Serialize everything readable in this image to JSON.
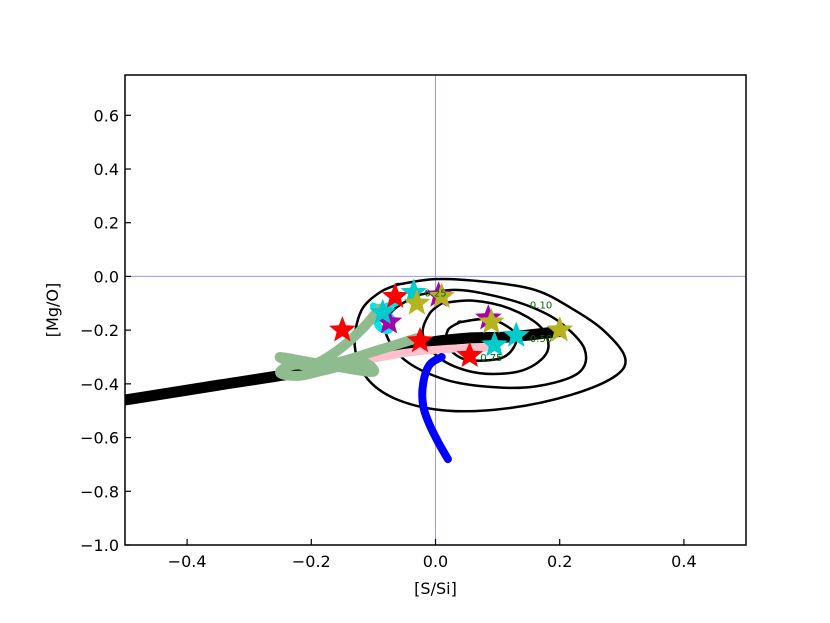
{
  "chart_data": {
    "type": "line",
    "xlabel": "[S/Si]",
    "ylabel": "[Mg/O]",
    "xlim": [
      -0.5,
      0.5
    ],
    "ylim": [
      -1.0,
      0.75
    ],
    "xticks": [
      -0.4,
      -0.2,
      0.0,
      0.2,
      0.4
    ],
    "xtick_labels": [
      "−0.4",
      "−0.2",
      "0.0",
      "0.2",
      "0.4"
    ],
    "yticks": [
      -1.0,
      -0.8,
      -0.6,
      -0.4,
      -0.2,
      0.0,
      0.2,
      0.4,
      0.6
    ],
    "ytick_labels": [
      "−1.0",
      "−0.8",
      "−0.6",
      "−0.4",
      "−0.2",
      "0.0",
      "0.2",
      "0.4",
      "0.6"
    ],
    "reference_lines": {
      "x": 0.0,
      "y": 0.0,
      "color": "#9999ee"
    },
    "contours": [
      {
        "level": "0.10",
        "points": [
          [
            -0.06,
            -0.03
          ],
          [
            0.0,
            -0.01
          ],
          [
            0.08,
            -0.02
          ],
          [
            0.16,
            -0.05
          ],
          [
            0.22,
            -0.12
          ],
          [
            0.27,
            -0.2
          ],
          [
            0.305,
            -0.3
          ],
          [
            0.29,
            -0.37
          ],
          [
            0.22,
            -0.44
          ],
          [
            0.12,
            -0.49
          ],
          [
            0.02,
            -0.5
          ],
          [
            -0.06,
            -0.46
          ],
          [
            -0.11,
            -0.38
          ],
          [
            -0.13,
            -0.26
          ],
          [
            -0.12,
            -0.13
          ],
          [
            -0.09,
            -0.06
          ],
          [
            -0.06,
            -0.03
          ]
        ]
      },
      {
        "level": "0.25",
        "points": [
          [
            -0.03,
            -0.07
          ],
          [
            0.03,
            -0.05
          ],
          [
            0.09,
            -0.07
          ],
          [
            0.15,
            -0.11
          ],
          [
            0.2,
            -0.17
          ],
          [
            0.24,
            -0.27
          ],
          [
            0.23,
            -0.36
          ],
          [
            0.16,
            -0.41
          ],
          [
            0.08,
            -0.41
          ],
          [
            0.01,
            -0.38
          ],
          [
            -0.05,
            -0.31
          ],
          [
            -0.08,
            -0.21
          ],
          [
            -0.07,
            -0.13
          ],
          [
            -0.03,
            -0.07
          ]
        ]
      },
      {
        "level": "0.50",
        "points": [
          [
            0.01,
            -0.1
          ],
          [
            0.06,
            -0.09
          ],
          [
            0.12,
            -0.12
          ],
          [
            0.17,
            -0.19
          ],
          [
            0.18,
            -0.28
          ],
          [
            0.14,
            -0.35
          ],
          [
            0.07,
            -0.36
          ],
          [
            0.01,
            -0.31
          ],
          [
            -0.02,
            -0.22
          ],
          [
            -0.01,
            -0.14
          ],
          [
            0.01,
            -0.1
          ]
        ]
      },
      {
        "level": "0.75",
        "points": [
          [
            0.04,
            -0.17
          ],
          [
            0.09,
            -0.16
          ],
          [
            0.13,
            -0.22
          ],
          [
            0.11,
            -0.3
          ],
          [
            0.05,
            -0.31
          ],
          [
            0.02,
            -0.26
          ],
          [
            0.02,
            -0.2
          ],
          [
            0.04,
            -0.17
          ]
        ]
      }
    ],
    "contour_labels": [
      {
        "text": "0.25",
        "x": 0.0,
        "y": -0.075
      },
      {
        "text": "0.10",
        "x": 0.17,
        "y": -0.12
      },
      {
        "text": "0.50",
        "x": 0.17,
        "y": -0.245
      },
      {
        "text": "0.75",
        "x": 0.09,
        "y": -0.315
      }
    ],
    "series": [
      {
        "color": "#000000",
        "width": 11,
        "points": [
          [
            -0.5,
            -0.46
          ],
          [
            -0.35,
            -0.405
          ],
          [
            -0.2,
            -0.35
          ],
          [
            -0.1,
            -0.3
          ],
          [
            -0.02,
            -0.25
          ],
          [
            0.05,
            -0.23
          ],
          [
            0.12,
            -0.225
          ],
          [
            0.2,
            -0.205
          ]
        ]
      },
      {
        "color": "#ffc0cb",
        "width": 8,
        "points": [
          [
            -0.2,
            -0.345
          ],
          [
            -0.12,
            -0.315
          ],
          [
            -0.05,
            -0.285
          ],
          [
            0.02,
            -0.27
          ],
          [
            0.08,
            -0.265
          ]
        ]
      },
      {
        "color": "#0000ff",
        "width": 8,
        "points": [
          [
            0.01,
            -0.3
          ],
          [
            -0.01,
            -0.33
          ],
          [
            -0.02,
            -0.4
          ],
          [
            -0.02,
            -0.48
          ],
          [
            -0.01,
            -0.55
          ],
          [
            0.005,
            -0.62
          ],
          [
            0.02,
            -0.68
          ]
        ]
      },
      {
        "color": "#00e5ee",
        "width": 7,
        "points": [
          [
            -0.1,
            -0.11
          ],
          [
            -0.085,
            -0.13
          ],
          [
            -0.07,
            -0.16
          ],
          [
            -0.075,
            -0.2
          ],
          [
            -0.09,
            -0.19
          ],
          [
            -0.095,
            -0.155
          ],
          [
            -0.085,
            -0.12
          ],
          [
            -0.06,
            -0.095
          ]
        ]
      },
      {
        "color": "#8fbc8f",
        "width": 10,
        "points": [
          [
            -0.09,
            -0.12
          ],
          [
            -0.12,
            -0.2
          ],
          [
            -0.16,
            -0.28
          ],
          [
            -0.2,
            -0.33
          ],
          [
            -0.23,
            -0.32
          ],
          [
            -0.25,
            -0.3
          ],
          [
            -0.2,
            -0.32
          ],
          [
            -0.15,
            -0.34
          ],
          [
            -0.1,
            -0.355
          ],
          [
            -0.12,
            -0.32
          ],
          [
            -0.18,
            -0.35
          ],
          [
            -0.22,
            -0.37
          ],
          [
            -0.25,
            -0.36
          ],
          [
            -0.23,
            -0.33
          ],
          [
            -0.16,
            -0.32
          ],
          [
            -0.1,
            -0.28
          ],
          [
            -0.03,
            -0.23
          ]
        ]
      }
    ],
    "stars": [
      {
        "x": -0.15,
        "y": -0.2,
        "color": "#ff0000"
      },
      {
        "x": -0.025,
        "y": -0.24,
        "color": "#ff0000"
      },
      {
        "x": 0.055,
        "y": -0.295,
        "color": "#ff0000"
      },
      {
        "x": -0.065,
        "y": -0.075,
        "color": "#ff0000"
      },
      {
        "x": 0.005,
        "y": -0.07,
        "color": "#aa00aa"
      },
      {
        "x": 0.085,
        "y": -0.155,
        "color": "#aa00aa"
      },
      {
        "x": -0.075,
        "y": -0.17,
        "color": "#aa00aa"
      },
      {
        "x": -0.035,
        "y": -0.06,
        "color": "#00cccc"
      },
      {
        "x": -0.085,
        "y": -0.135,
        "color": "#00cccc"
      },
      {
        "x": 0.13,
        "y": -0.22,
        "color": "#00cccc"
      },
      {
        "x": 0.095,
        "y": -0.255,
        "color": "#00cccc"
      },
      {
        "x": -0.03,
        "y": -0.1,
        "color": "#b5b31f"
      },
      {
        "x": 0.01,
        "y": -0.075,
        "color": "#b5b31f"
      },
      {
        "x": 0.09,
        "y": -0.17,
        "color": "#b5b31f"
      },
      {
        "x": 0.2,
        "y": -0.2,
        "color": "#b5b31f"
      }
    ]
  }
}
